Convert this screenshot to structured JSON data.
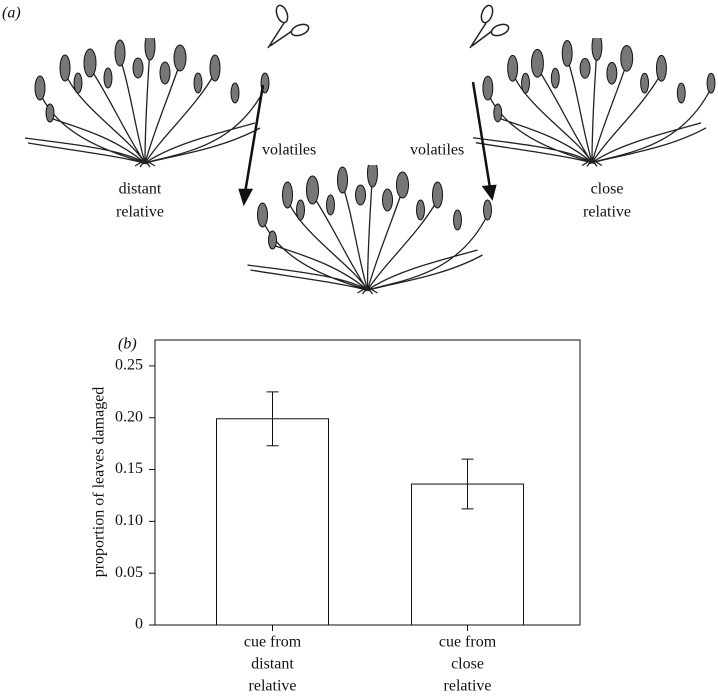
{
  "figure": {
    "panel_label": "(a)",
    "volatiles_left": "volatiles",
    "volatiles_right": "volatiles",
    "distant_label": [
      "distant",
      "relative"
    ],
    "close_label": [
      "close",
      "relative"
    ]
  },
  "chart_data": {
    "type": "bar",
    "panel_label": "(b)",
    "y_label": "proportion of leaves damaged",
    "categories": [
      [
        "cue from",
        "distant",
        "relative"
      ],
      [
        "cue from",
        "close",
        "relative"
      ]
    ],
    "values": [
      0.199,
      0.136
    ],
    "errors": [
      0.026,
      0.024
    ],
    "color": "#ffffff",
    "ylim": [
      0,
      0.275
    ],
    "yticks": [
      0,
      0.05,
      {
        "value": 0.1,
        "label": "0.10"
      },
      0.15,
      {
        "value": 0.2,
        "label": "0.20"
      },
      0.25
    ]
  }
}
